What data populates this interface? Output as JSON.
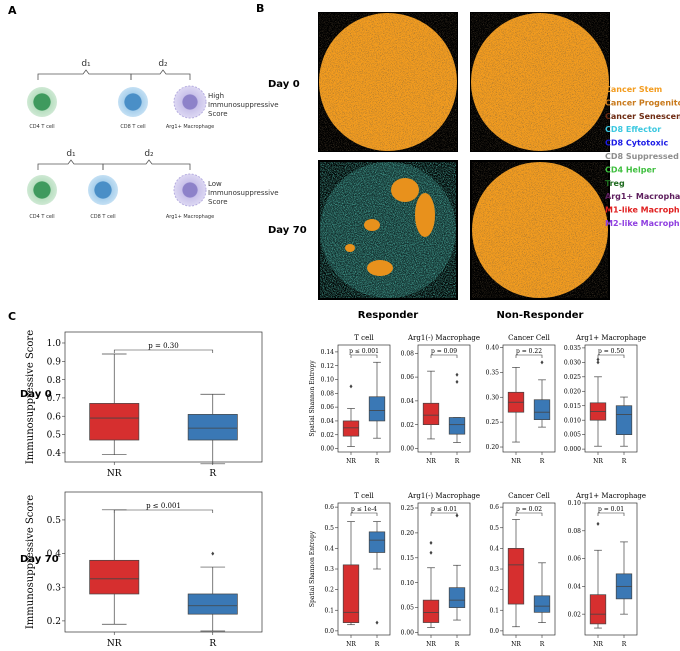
{
  "figure": {
    "panel_labels": [
      "A",
      "B",
      "C"
    ],
    "panel_a": {
      "distances": [
        "d₁",
        "d₂"
      ],
      "top_row": {
        "cells": [
          "CD4 T cell",
          "CD8 T cell",
          "Arg1+ Macrophage"
        ],
        "score": [
          "High",
          "Immunosuppressive",
          "Score"
        ]
      },
      "bottom_row": {
        "cells": [
          "CD4 T cell",
          "CD8 T cell",
          "Arg1+ Macrophage"
        ],
        "score": [
          "Low",
          "Immunosuppressive",
          "Score"
        ]
      }
    },
    "panel_b": {
      "rows": [
        "Day 0",
        "Day 70"
      ],
      "columns": [
        "Responder",
        "Non-Responder"
      ],
      "legend": [
        {
          "name": "Cancer Stem",
          "color": "#f39c1f"
        },
        {
          "name": "Cancer Progenitor",
          "color": "#c97a1c"
        },
        {
          "name": "Cancer Senescent",
          "color": "#6e2b12"
        },
        {
          "name": "CD8 Effector",
          "color": "#3cc8e0"
        },
        {
          "name": "CD8 Cytotoxic",
          "color": "#1c1ce6"
        },
        {
          "name": "CD8 Suppressed",
          "color": "#8e8e8e"
        },
        {
          "name": "CD4 Helper",
          "color": "#3fbf3f"
        },
        {
          "name": "Treg",
          "color": "#1f6b1f"
        },
        {
          "name": "Arg1+ Macrophage",
          "color": "#5e1f5e"
        },
        {
          "name": "M1-like Macrophage",
          "color": "#e01f1f"
        },
        {
          "name": "M2-like Macrophage",
          "color": "#8f3fe0"
        }
      ]
    }
  },
  "chart_data": [
    {
      "type": "box",
      "row_label": "Day 0",
      "ylabel": "Immunosuppressive Score",
      "categories": [
        "NR",
        "R"
      ],
      "ylim": [
        0.35,
        1.06
      ],
      "yticks": [
        0.4,
        0.5,
        0.6,
        0.7,
        0.8,
        0.9,
        {
          "value": 1,
          "label": "1.0"
        }
      ],
      "annotation": "p = 0.30",
      "boxes": [
        {
          "color": "#d62f2f",
          "min": 0.39,
          "q1": 0.47,
          "median": 0.59,
          "q3": 0.67,
          "max": 0.94,
          "outliers": []
        },
        {
          "color": "#3a78b5",
          "min": 0.34,
          "q1": 0.47,
          "median": 0.535,
          "q3": 0.61,
          "max": 0.72,
          "outliers": []
        }
      ]
    },
    {
      "type": "box",
      "row_label": "Day 70",
      "ylabel": "Immunosuppressive Score",
      "categories": [
        "NR",
        "R"
      ],
      "ylim": [
        0.167,
        0.583
      ],
      "yticks": [
        0.2,
        0.3,
        0.4,
        0.5
      ],
      "annotation": "p ≤ 0.001",
      "boxes": [
        {
          "color": "#d62f2f",
          "min": 0.19,
          "q1": 0.28,
          "median": 0.325,
          "q3": 0.38,
          "max": 0.53,
          "outliers": []
        },
        {
          "color": "#3a78b5",
          "min": 0.17,
          "q1": 0.22,
          "median": 0.245,
          "q3": 0.28,
          "max": 0.36,
          "outliers": [
            0.4
          ]
        }
      ]
    },
    {
      "type": "box",
      "title": "T cell",
      "ylabel": "Spatial Shannon Entropy",
      "categories": [
        "NR",
        "R"
      ],
      "ylim": [
        -0.005,
        0.15
      ],
      "yticks": [
        {
          "value": 0,
          "label": "0.00"
        },
        0.02,
        0.04,
        0.06,
        0.08,
        {
          "value": 0.1,
          "label": "0.10"
        },
        0.12,
        0.14
      ],
      "annotation": "p ≤ 0.001",
      "boxes": [
        {
          "color": "#d62f2f",
          "min": 0.003,
          "q1": 0.018,
          "median": 0.03,
          "q3": 0.04,
          "max": 0.058,
          "outliers": [
            0.09
          ]
        },
        {
          "color": "#3a78b5",
          "min": 0.015,
          "q1": 0.04,
          "median": 0.055,
          "q3": 0.075,
          "max": 0.125,
          "outliers": []
        }
      ]
    },
    {
      "type": "box",
      "title": "Arg1(-) Macrophage",
      "categories": [
        "NR",
        "R"
      ],
      "ylim": [
        -0.003,
        0.087
      ],
      "yticks": [
        {
          "value": 0,
          "label": "0.00"
        },
        0.02,
        0.04,
        0.06,
        0.08
      ],
      "annotation": "p = 0.09",
      "boxes": [
        {
          "color": "#d62f2f",
          "min": 0.008,
          "q1": 0.02,
          "median": 0.028,
          "q3": 0.038,
          "max": 0.065,
          "outliers": []
        },
        {
          "color": "#3a78b5",
          "min": 0.005,
          "q1": 0.012,
          "median": 0.02,
          "q3": 0.026,
          "max": 0.026,
          "outliers": [
            0.056,
            0.062
          ]
        }
      ]
    },
    {
      "type": "box",
      "title": "Cancer Cell",
      "categories": [
        "NR",
        "R"
      ],
      "ylim": [
        0.19,
        0.405
      ],
      "yticks": [
        {
          "value": 0.2,
          "label": "0.20"
        },
        0.25,
        {
          "value": 0.3,
          "label": "0.30"
        },
        0.35,
        {
          "value": 0.4,
          "label": "0.40"
        }
      ],
      "annotation": "p = 0.22",
      "boxes": [
        {
          "color": "#d62f2f",
          "min": 0.21,
          "q1": 0.27,
          "median": 0.29,
          "q3": 0.31,
          "max": 0.36,
          "outliers": []
        },
        {
          "color": "#3a78b5",
          "min": 0.24,
          "q1": 0.255,
          "median": 0.27,
          "q3": 0.295,
          "max": 0.335,
          "outliers": [
            0.37
          ]
        }
      ]
    },
    {
      "type": "box",
      "title": "Arg1+ Macrophage",
      "categories": [
        "NR",
        "R"
      ],
      "ylim": [
        -0.001,
        0.036
      ],
      "yticks": [
        {
          "value": 0,
          "label": "0.000"
        },
        0.005,
        {
          "value": 0.01,
          "label": "0.010"
        },
        0.015,
        {
          "value": 0.02,
          "label": "0.020"
        },
        0.025,
        {
          "value": 0.03,
          "label": "0.030"
        },
        0.035
      ],
      "annotation": "p = 0.50",
      "boxes": [
        {
          "color": "#d62f2f",
          "min": 0.001,
          "q1": 0.01,
          "median": 0.013,
          "q3": 0.016,
          "max": 0.025,
          "outliers": [
            0.03,
            0.031
          ]
        },
        {
          "color": "#3a78b5",
          "min": 0.001,
          "q1": 0.005,
          "median": 0.012,
          "q3": 0.015,
          "max": 0.018,
          "outliers": []
        }
      ]
    },
    {
      "type": "box",
      "title": "T cell",
      "ylabel": "Spatial Shannon Entropy",
      "categories": [
        "NR",
        "R"
      ],
      "ylim": [
        -0.02,
        0.62
      ],
      "yticks": [
        {
          "value": 0,
          "label": "0.0"
        },
        0.1,
        0.2,
        0.3,
        0.4,
        0.5,
        0.6
      ],
      "annotation": "p ≤ 1e-4",
      "boxes": [
        {
          "color": "#d62f2f",
          "min": 0.03,
          "q1": 0.04,
          "median": 0.09,
          "q3": 0.32,
          "max": 0.53,
          "outliers": []
        },
        {
          "color": "#3a78b5",
          "min": 0.3,
          "q1": 0.38,
          "median": 0.44,
          "q3": 0.48,
          "max": 0.53,
          "outliers": [
            0.04
          ]
        }
      ]
    },
    {
      "type": "box",
      "title": "Arg1(-) Macrophage",
      "categories": [
        "NR",
        "R"
      ],
      "ylim": [
        -0.005,
        0.26
      ],
      "yticks": [
        {
          "value": 0,
          "label": "0.00"
        },
        0.05,
        {
          "value": 0.1,
          "label": "0.10"
        },
        0.15,
        {
          "value": 0.2,
          "label": "0.20"
        },
        0.25
      ],
      "annotation": "p ≤ 0.01",
      "boxes": [
        {
          "color": "#d62f2f",
          "min": 0.01,
          "q1": 0.02,
          "median": 0.04,
          "q3": 0.065,
          "max": 0.13,
          "outliers": [
            0.16,
            0.18
          ]
        },
        {
          "color": "#3a78b5",
          "min": 0.025,
          "q1": 0.05,
          "median": 0.065,
          "q3": 0.09,
          "max": 0.135,
          "outliers": [
            0.235
          ]
        }
      ]
    },
    {
      "type": "box",
      "title": "Cancer Cell",
      "categories": [
        "NR",
        "R"
      ],
      "ylim": [
        -0.02,
        0.62
      ],
      "yticks": [
        {
          "value": 0,
          "label": "0.0"
        },
        0.1,
        0.2,
        0.3,
        0.4,
        0.5,
        0.6
      ],
      "annotation": "p = 0.02",
      "boxes": [
        {
          "color": "#d62f2f",
          "min": 0.02,
          "q1": 0.13,
          "median": 0.32,
          "q3": 0.4,
          "max": 0.54,
          "outliers": []
        },
        {
          "color": "#3a78b5",
          "min": 0.04,
          "q1": 0.09,
          "median": 0.12,
          "q3": 0.17,
          "max": 0.33,
          "outliers": []
        }
      ]
    },
    {
      "type": "box",
      "title": "Arg1+ Macrophage",
      "categories": [
        "NR",
        "R"
      ],
      "ylim": [
        0.005,
        0.1
      ],
      "yticks": [
        0.02,
        0.04,
        0.06,
        0.08,
        {
          "value": 0.1,
          "label": "0.10"
        }
      ],
      "annotation": "p = 0.01",
      "boxes": [
        {
          "color": "#d62f2f",
          "min": 0.01,
          "q1": 0.013,
          "median": 0.02,
          "q3": 0.034,
          "max": 0.066,
          "outliers": [
            0.085
          ]
        },
        {
          "color": "#3a78b5",
          "min": 0.02,
          "q1": 0.031,
          "median": 0.04,
          "q3": 0.049,
          "max": 0.072,
          "outliers": []
        }
      ]
    }
  ]
}
